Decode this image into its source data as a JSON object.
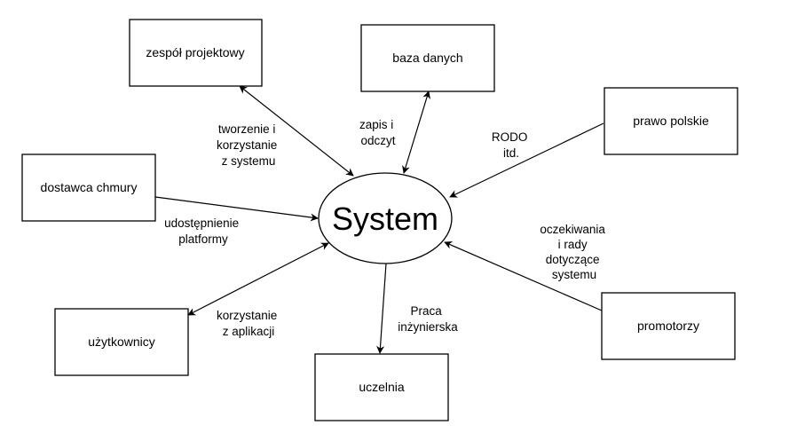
{
  "center": {
    "label": "System"
  },
  "nodes": {
    "zespol_projektowy": "zespół projektowy",
    "baza_danych": "baza danych",
    "prawo_polskie": "prawo polskie",
    "dostawca_chmury": "dostawca chmury",
    "uzytkownicy": "użytkownicy",
    "uczelnia": "uczelnia",
    "promotorzy": "promotorzy"
  },
  "edge_labels": {
    "zespol_projektowy": [
      "tworzenie i",
      "korzystanie",
      "z systemu"
    ],
    "baza_danych": [
      "zapis i",
      "odczyt"
    ],
    "prawo_polskie": [
      "RODO",
      "itd."
    ],
    "dostawca_chmury": [
      "udostępnienie",
      "platformy"
    ],
    "uzytkownicy": [
      "korzystanie",
      "z aplikacji"
    ],
    "uczelnia": [
      "Praca",
      "inżynierska"
    ],
    "promotorzy": [
      "oczekiwania",
      "i rady",
      "dotyczące",
      "systemu"
    ]
  }
}
